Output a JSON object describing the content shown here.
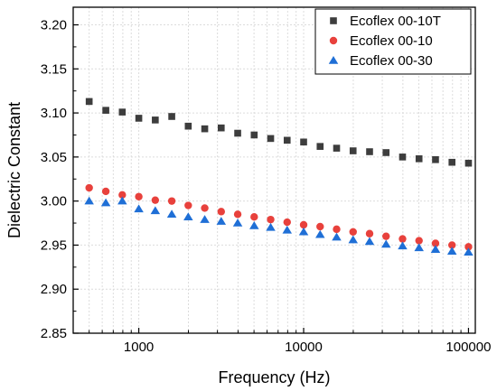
{
  "chart_data": {
    "type": "scatter",
    "title": "",
    "xlabel": "Frequency (Hz)",
    "ylabel": "Dielectric Constant",
    "xscale": "log",
    "xlim": [
      400,
      110000
    ],
    "ylim": [
      2.85,
      3.22
    ],
    "xticks": [
      1000,
      10000,
      100000
    ],
    "xtick_labels": [
      "1000",
      "10000",
      "100000"
    ],
    "yticks": [
      2.85,
      2.9,
      2.95,
      3.0,
      3.05,
      3.1,
      3.15,
      3.2
    ],
    "ytick_labels": [
      "2.85",
      "2.90",
      "2.95",
      "3.00",
      "3.05",
      "3.10",
      "3.15",
      "3.20"
    ],
    "grid": true,
    "legend_position": "top-right",
    "x": [
      500,
      631,
      794,
      1000,
      1259,
      1585,
      1995,
      2512,
      3162,
      3981,
      5012,
      6310,
      7943,
      10000,
      12589,
      15849,
      19953,
      25119,
      31623,
      39811,
      50119,
      63096,
      79433,
      100000
    ],
    "series": [
      {
        "name": "Ecoflex 00-10T",
        "marker": "square",
        "color": "#3d3d3d",
        "values": [
          3.113,
          3.103,
          3.101,
          3.094,
          3.092,
          3.096,
          3.085,
          3.082,
          3.083,
          3.077,
          3.075,
          3.071,
          3.069,
          3.067,
          3.062,
          3.06,
          3.057,
          3.056,
          3.055,
          3.05,
          3.048,
          3.047,
          3.044,
          3.043
        ]
      },
      {
        "name": "Ecoflex 00-10",
        "marker": "circle",
        "color": "#e8413c",
        "values": [
          3.015,
          3.011,
          3.007,
          3.005,
          3.001,
          3.0,
          2.995,
          2.992,
          2.988,
          2.985,
          2.982,
          2.979,
          2.976,
          2.973,
          2.971,
          2.968,
          2.965,
          2.963,
          2.96,
          2.957,
          2.955,
          2.952,
          2.95,
          2.948
        ]
      },
      {
        "name": "Ecoflex 00-30",
        "marker": "triangle",
        "color": "#1f6fd6",
        "values": [
          3.0,
          2.998,
          3.0,
          2.991,
          2.989,
          2.985,
          2.982,
          2.979,
          2.977,
          2.975,
          2.972,
          2.97,
          2.967,
          2.965,
          2.962,
          2.959,
          2.956,
          2.954,
          2.951,
          2.949,
          2.947,
          2.945,
          2.943,
          2.942
        ]
      }
    ]
  }
}
